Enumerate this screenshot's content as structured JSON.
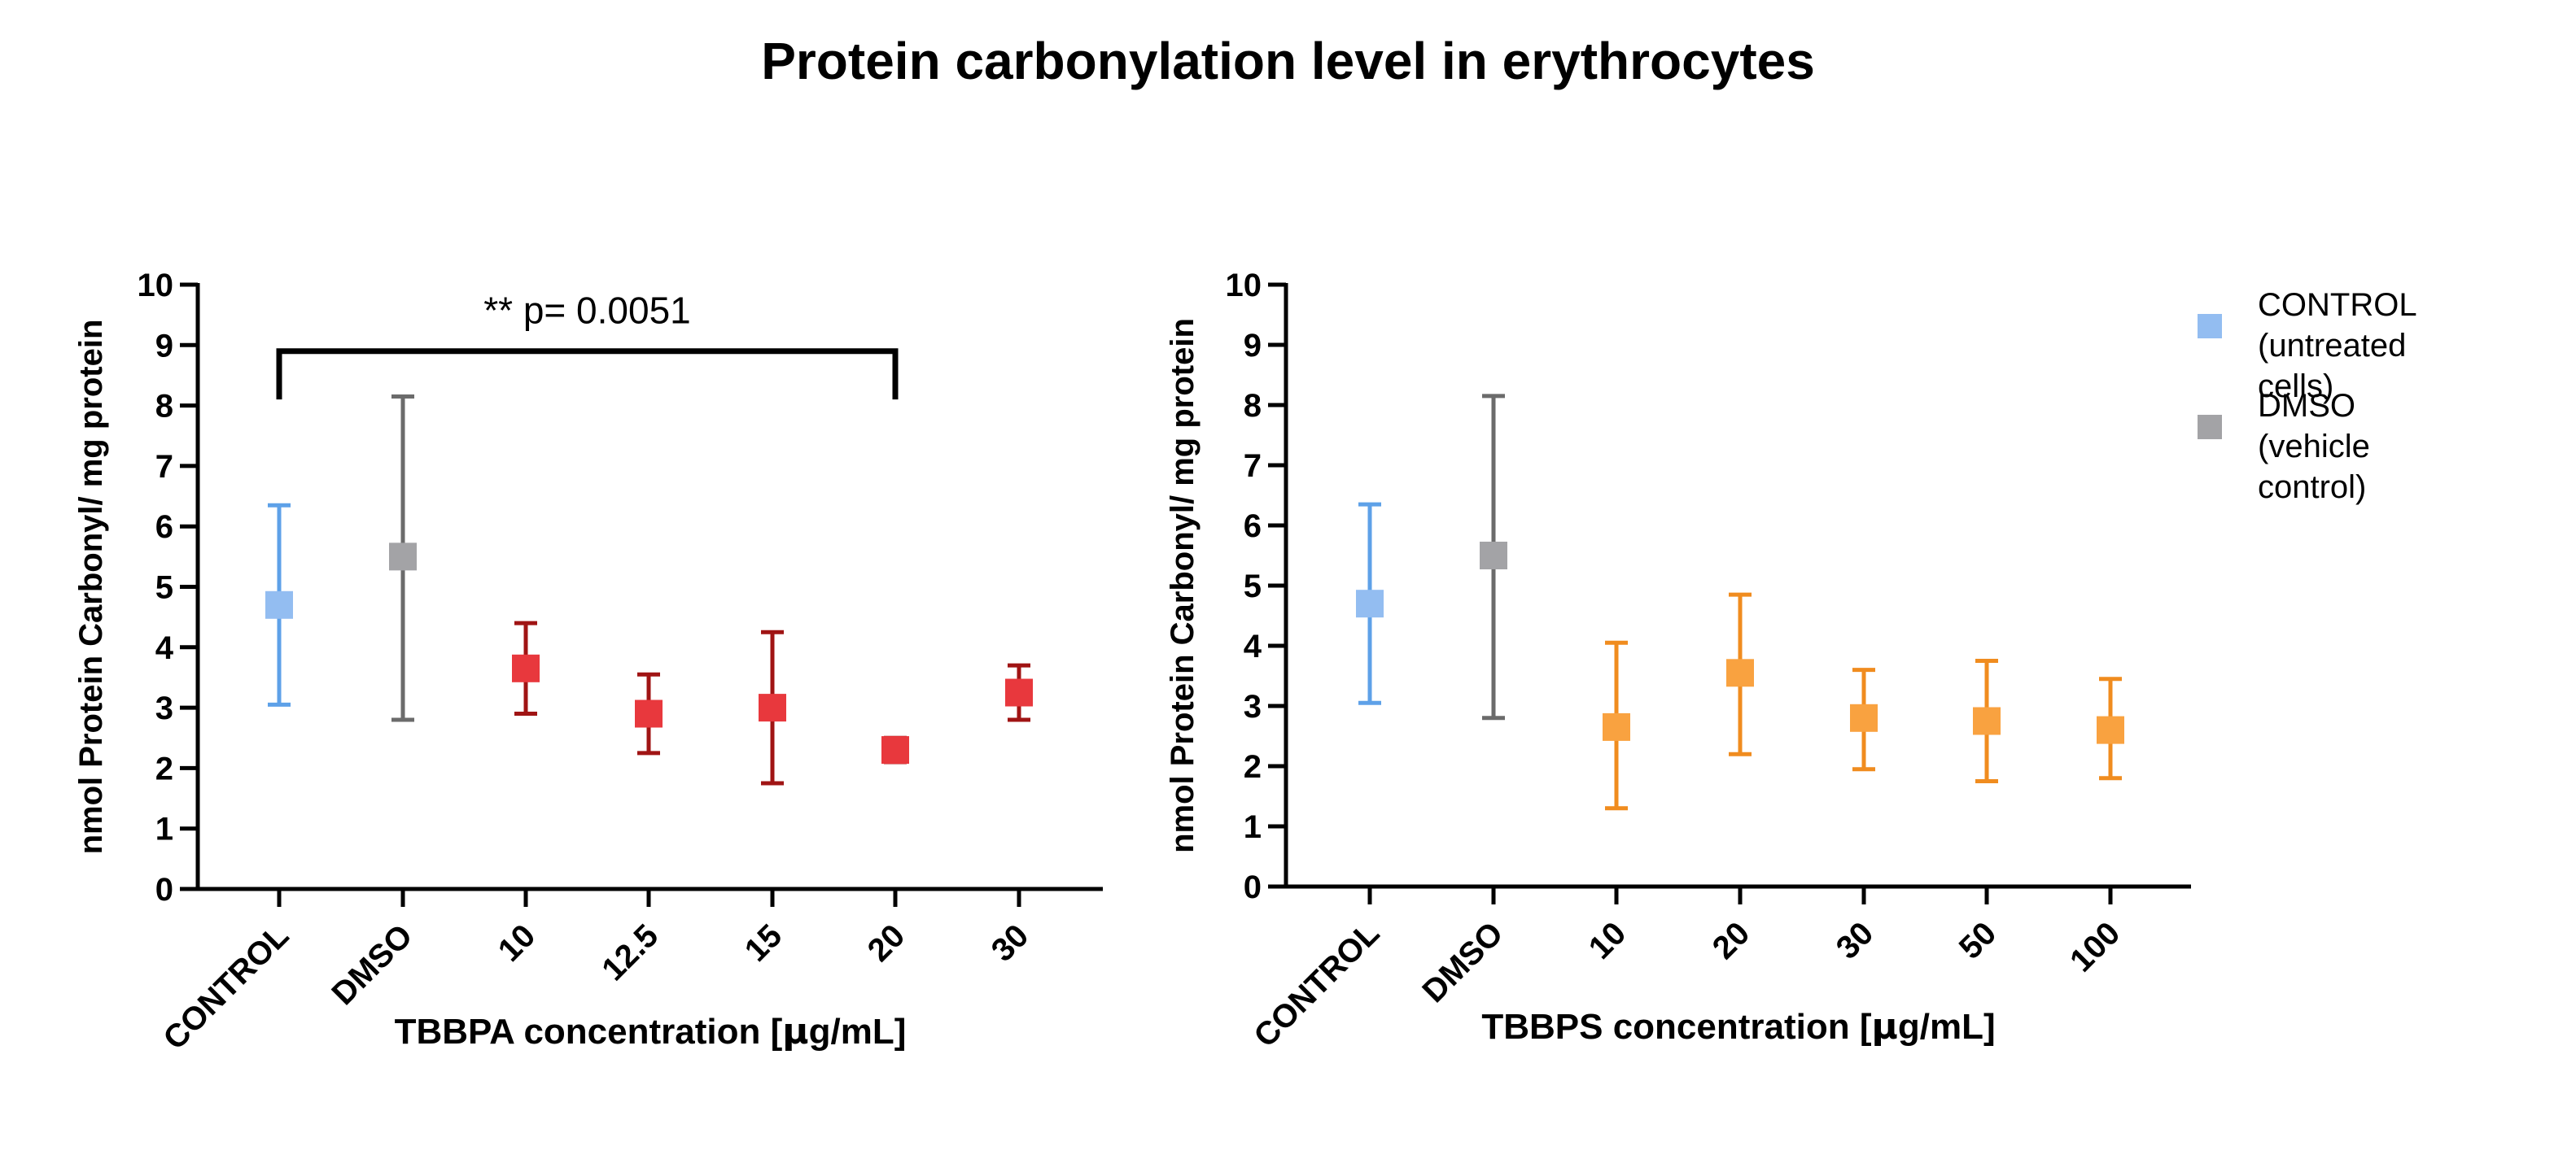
{
  "title": "Protein carbonylation level in erythrocytes",
  "colors": {
    "control_marker": "#93BDF1",
    "control_bar": "#5EA1E8",
    "dmso_marker": "#A3A3A6",
    "dmso_bar": "#6B6B6B",
    "tbbpa_marker": "#E8383D",
    "tbbpa_bar": "#A01414",
    "tbbps_marker": "#F9A240",
    "tbbps_bar": "#F08C1F"
  },
  "legend": [
    {
      "line1": "CONTROL",
      "line2": "(untreated cells)",
      "color": "#93BDF1"
    },
    {
      "line1": "DMSO",
      "line2": "(vehicle control)",
      "color": "#A3A3A6"
    }
  ],
  "chart_data": [
    {
      "type": "scatter",
      "subtype": "error-bar",
      "xlabel_prefix": "TBBPA concentration [",
      "xlabel_mu": "μ",
      "xlabel_suffix": "g/mL]",
      "ylabel": "nmol Protein Carbonyl/ mg protein",
      "ylim": [
        0,
        10
      ],
      "yticks": [
        "0",
        "1",
        "2",
        "3",
        "4",
        "5",
        "6",
        "7",
        "8",
        "9",
        "10"
      ],
      "categories": [
        "CONTROL",
        "DMSO",
        "10",
        "12.5",
        "15",
        "20",
        "30"
      ],
      "values": [
        4.7,
        5.5,
        3.65,
        2.9,
        3.0,
        2.3,
        3.25
      ],
      "lower": [
        3.05,
        2.8,
        2.9,
        2.25,
        1.75,
        2.1,
        2.8
      ],
      "upper": [
        6.35,
        8.15,
        4.4,
        3.55,
        4.25,
        2.5,
        3.7
      ],
      "annotation": {
        "text": "** p= 0.0051",
        "from_category": "CONTROL",
        "to_category": "20",
        "bracket_y": 8.9,
        "bracket_bottom_y": 8.1
      }
    },
    {
      "type": "scatter",
      "subtype": "error-bar",
      "xlabel_prefix": "TBBPS concentration [",
      "xlabel_mu": "μ",
      "xlabel_suffix": "g/mL]",
      "ylabel": "nmol Protein Carbonyl/ mg protein",
      "ylim": [
        0,
        10
      ],
      "yticks": [
        "0",
        "1",
        "2",
        "3",
        "4",
        "5",
        "6",
        "7",
        "8",
        "9",
        "10"
      ],
      "categories": [
        "CONTROL",
        "DMSO",
        "10",
        "20",
        "30",
        "50",
        "100"
      ],
      "values": [
        4.7,
        5.5,
        2.65,
        3.55,
        2.8,
        2.75,
        2.6
      ],
      "lower": [
        3.05,
        2.8,
        1.3,
        2.2,
        1.95,
        1.75,
        1.8
      ],
      "upper": [
        6.35,
        8.15,
        4.05,
        4.85,
        3.6,
        3.75,
        3.45
      ]
    }
  ]
}
